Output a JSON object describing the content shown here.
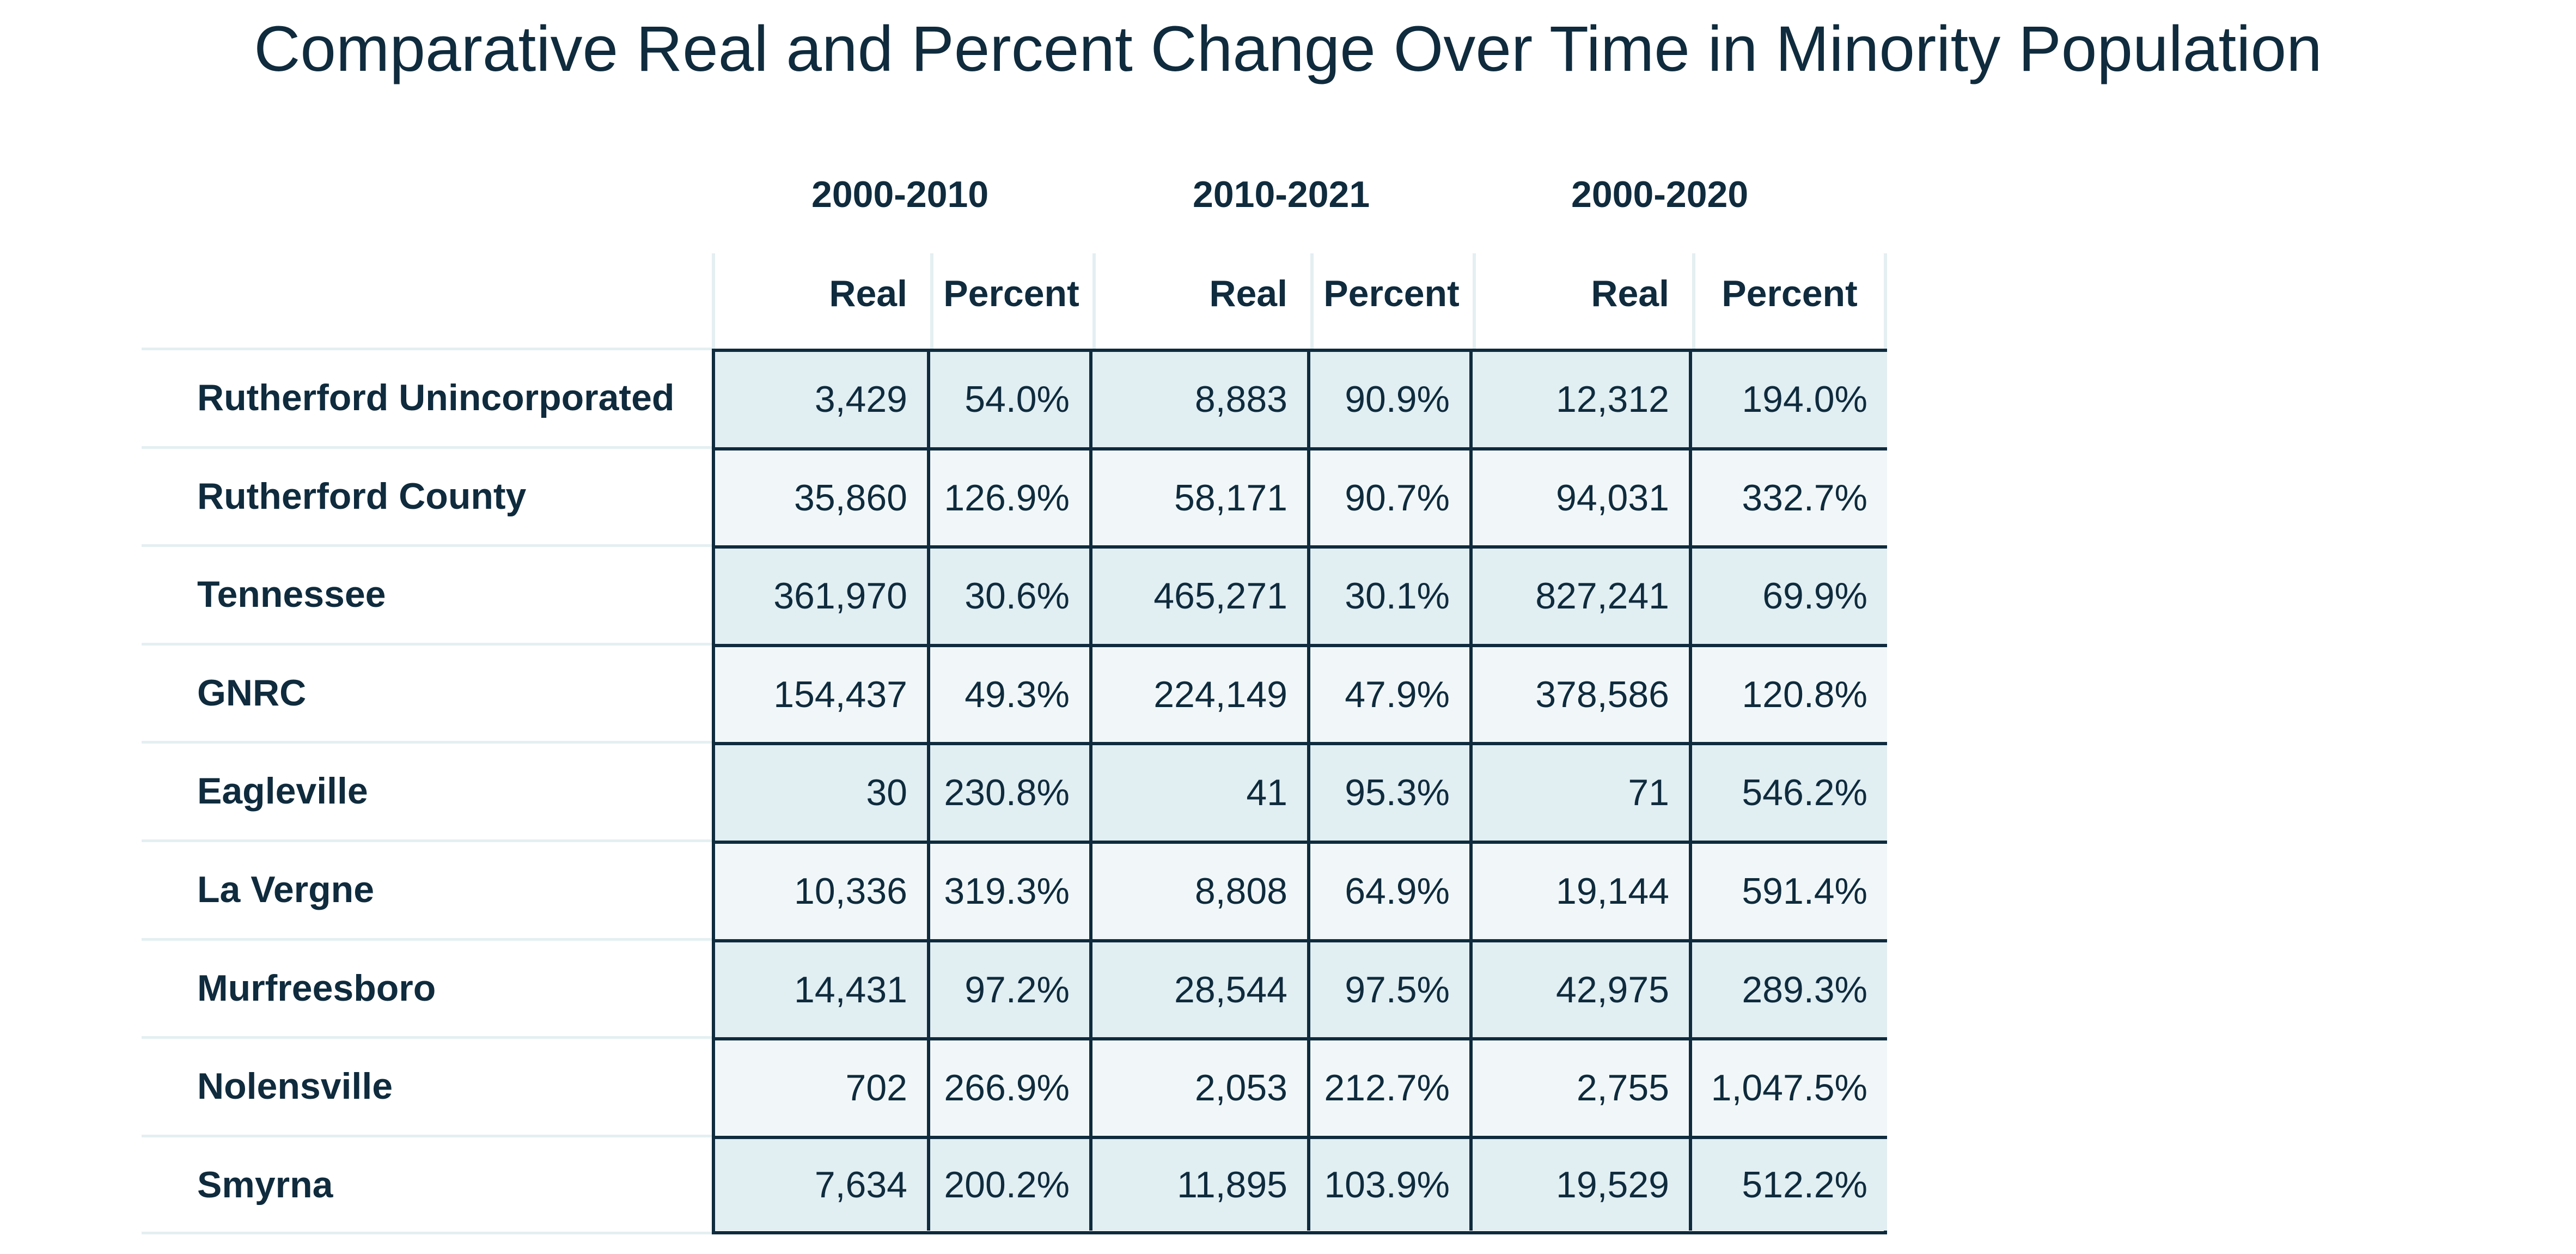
{
  "title": "Comparative Real and Percent Change Over Time in Minority Population",
  "periods": [
    "2000-2010",
    "2010-2021",
    "2000-2020"
  ],
  "subheaders": [
    "Real",
    "Percent",
    "Real",
    "Percent",
    "Real",
    "Percent"
  ],
  "rows": [
    {
      "label": "Rutherford Unincorporated",
      "values": [
        "3,429",
        "54.0%",
        "8,883",
        "90.9%",
        "12,312",
        "194.0%"
      ]
    },
    {
      "label": "Rutherford County",
      "values": [
        "35,860",
        "126.9%",
        "58,171",
        "90.7%",
        "94,031",
        "332.7%"
      ]
    },
    {
      "label": "Tennessee",
      "values": [
        "361,970",
        "30.6%",
        "465,271",
        "30.1%",
        "827,241",
        "69.9%"
      ]
    },
    {
      "label": "GNRC",
      "values": [
        "154,437",
        "49.3%",
        "224,149",
        "47.9%",
        "378,586",
        "120.8%"
      ]
    },
    {
      "label": "Eagleville",
      "values": [
        "30",
        "230.8%",
        "41",
        "95.3%",
        "71",
        "546.2%"
      ]
    },
    {
      "label": "La Vergne",
      "values": [
        "10,336",
        "319.3%",
        "8,808",
        "64.9%",
        "19,144",
        "591.4%"
      ]
    },
    {
      "label": "Murfreesboro",
      "values": [
        "14,431",
        "97.2%",
        "28,544",
        "97.5%",
        "42,975",
        "289.3%"
      ]
    },
    {
      "label": "Nolensville",
      "values": [
        "702",
        "266.9%",
        "2,053",
        "212.7%",
        "2,755",
        "1,047.5%"
      ]
    },
    {
      "label": "Smyrna",
      "values": [
        "7,634",
        "200.2%",
        "11,895",
        "103.9%",
        "19,529",
        "512.2%"
      ]
    }
  ],
  "colors": {
    "text": "#0f2b3d",
    "grid_border": "#0f2b3d",
    "row_shade_dark": "#e1eef2",
    "row_shade_light": "#f1f7f8",
    "separator": "#e4eff2"
  }
}
